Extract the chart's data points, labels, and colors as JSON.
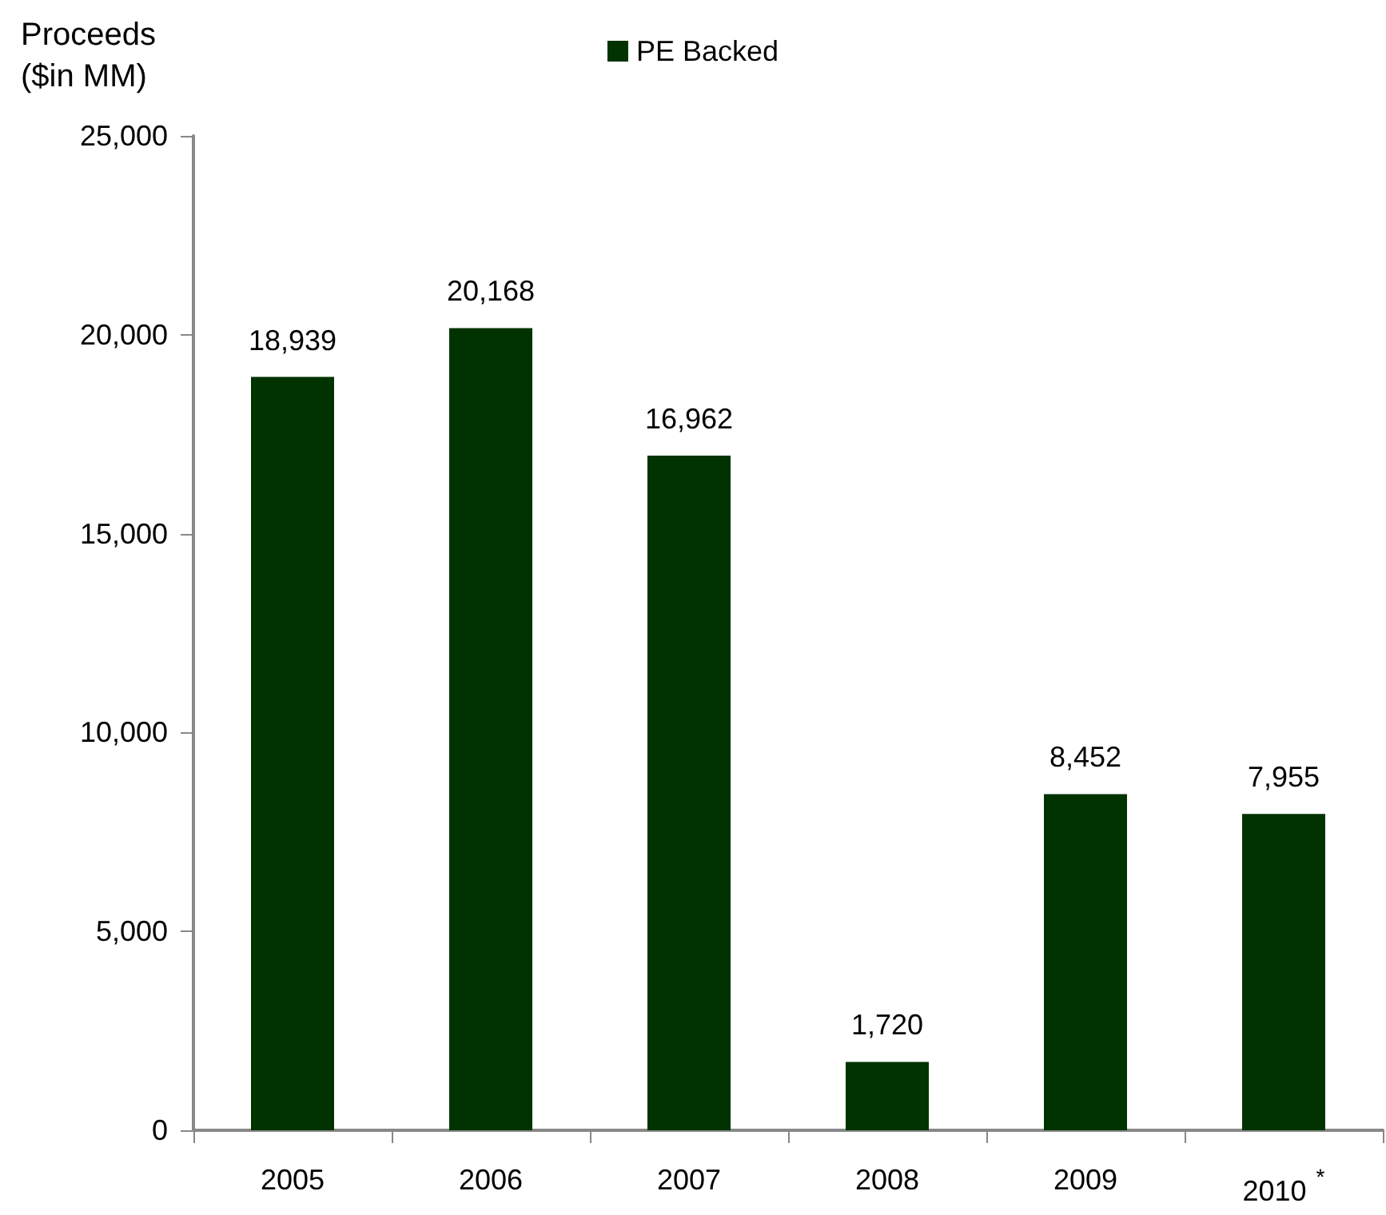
{
  "chart_data": {
    "type": "bar",
    "ylabel": "Proceeds ($in MM)",
    "categories": [
      "2005",
      "2006",
      "2007",
      "2008",
      "2009",
      "2010$^{*}$"
    ],
    "series": [
      {
        "name": "PE Backed",
        "color": "#003300",
        "values": [
          18939,
          20168,
          16962,
          1720,
          8452,
          7955
        ],
        "value_labels": [
          "18,939",
          "20,168",
          "16,962",
          "1,720",
          "8,452",
          "7,955"
        ]
      }
    ],
    "ylim": [
      0,
      25000
    ],
    "yticks": [
      0,
      {
        "value": 5000,
        "label": "5,000"
      },
      {
        "value": 10000,
        "label": "10,000"
      },
      {
        "value": 15000,
        "label": "15,000"
      },
      {
        "value": 20000,
        "label": "20,000"
      },
      {
        "value": 25000,
        "label": "25,000"
      }
    ],
    "grid": false,
    "legend": "top"
  }
}
